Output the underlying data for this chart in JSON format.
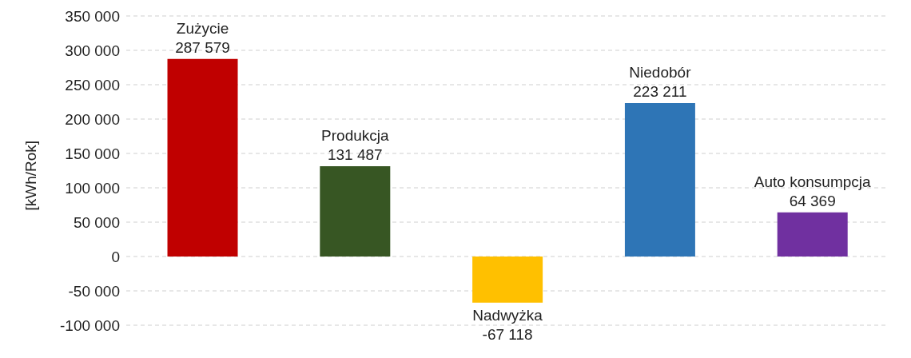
{
  "chart_data": {
    "type": "bar",
    "ylabel": "[kWh/Rok]",
    "categories": [
      "Zużycie",
      "Produkcja",
      "Nadwyżka",
      "Niedobór",
      "Auto konsumpcja"
    ],
    "values": [
      287579,
      131487,
      -67118,
      223211,
      64369
    ],
    "value_labels": [
      "287 579",
      "131 487",
      "-67 118",
      "223 211",
      "64 369"
    ],
    "colors": [
      "#c00000",
      "#375623",
      "#ffc000",
      "#2e75b6",
      "#7030a0"
    ],
    "ylim": [
      -100000,
      350000
    ],
    "yticks": [
      {
        "value": -100000,
        "label": "-100 000"
      },
      {
        "value": -50000,
        "label": "-50 000"
      },
      0,
      {
        "value": 50000,
        "label": "50 000"
      },
      {
        "value": 100000,
        "label": "100 000"
      },
      {
        "value": 150000,
        "label": "150 000"
      },
      {
        "value": 200000,
        "label": "200 000"
      },
      {
        "value": 250000,
        "label": "250 000"
      },
      {
        "value": 300000,
        "label": "300 000"
      },
      {
        "value": 350000,
        "label": "350 000"
      }
    ],
    "grid": "y",
    "tick_labels": "y"
  }
}
